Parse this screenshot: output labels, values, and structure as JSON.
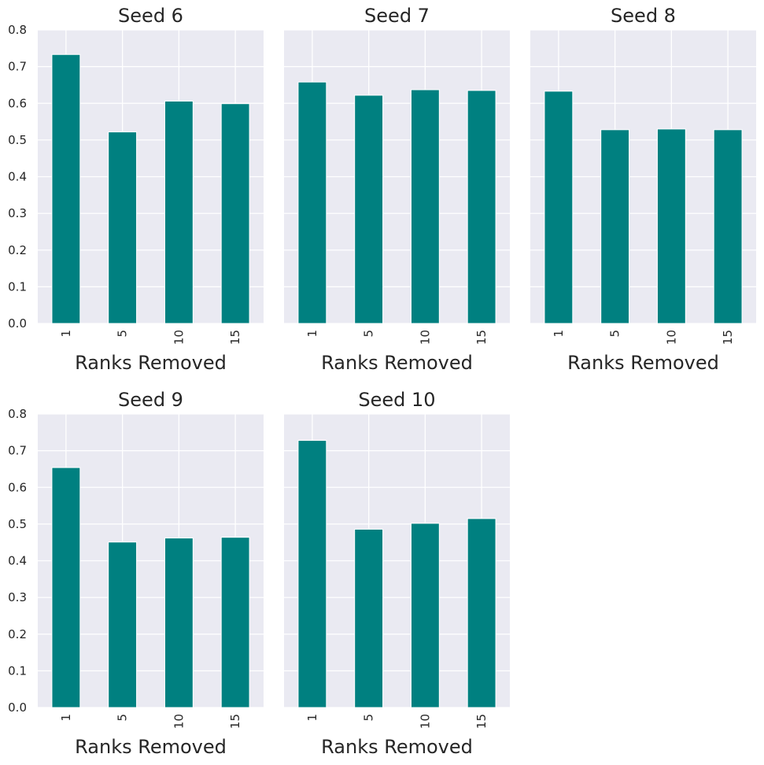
{
  "chart_data": [
    {
      "type": "bar",
      "title": "Seed 6",
      "xlabel": "Ranks Removed",
      "ylabel": "",
      "categories": [
        "1",
        "5",
        "10",
        "15"
      ],
      "values": [
        0.733,
        0.522,
        0.606,
        0.599
      ],
      "ylim": [
        0,
        0.8
      ],
      "yticks": [
        "0.0",
        "0.1",
        "0.2",
        "0.3",
        "0.4",
        "0.5",
        "0.6",
        "0.7",
        "0.8"
      ],
      "color": "#008080",
      "grid": true
    },
    {
      "type": "bar",
      "title": "Seed 7",
      "xlabel": "Ranks Removed",
      "ylabel": "",
      "categories": [
        "1",
        "5",
        "10",
        "15"
      ],
      "values": [
        0.658,
        0.622,
        0.637,
        0.635
      ],
      "ylim": [
        0,
        0.8
      ],
      "color": "#008080",
      "grid": true
    },
    {
      "type": "bar",
      "title": "Seed 8",
      "xlabel": "Ranks Removed",
      "ylabel": "",
      "categories": [
        "1",
        "5",
        "10",
        "15"
      ],
      "values": [
        0.633,
        0.528,
        0.53,
        0.528
      ],
      "ylim": [
        0,
        0.8
      ],
      "color": "#008080",
      "grid": true
    },
    {
      "type": "bar",
      "title": "Seed 9",
      "xlabel": "Ranks Removed",
      "ylabel": "",
      "categories": [
        "1",
        "5",
        "10",
        "15"
      ],
      "values": [
        0.654,
        0.451,
        0.462,
        0.464
      ],
      "ylim": [
        0,
        0.8
      ],
      "yticks": [
        "0.0",
        "0.1",
        "0.2",
        "0.3",
        "0.4",
        "0.5",
        "0.6",
        "0.7",
        "0.8"
      ],
      "color": "#008080",
      "grid": true
    },
    {
      "type": "bar",
      "title": "Seed 10",
      "xlabel": "Ranks Removed",
      "ylabel": "",
      "categories": [
        "1",
        "5",
        "10",
        "15"
      ],
      "values": [
        0.728,
        0.486,
        0.502,
        0.515
      ],
      "ylim": [
        0,
        0.8
      ],
      "color": "#008080",
      "grid": true
    }
  ]
}
